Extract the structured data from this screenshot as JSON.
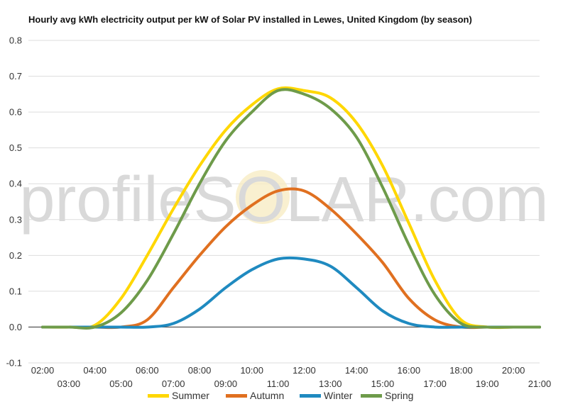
{
  "chart_data": {
    "type": "line",
    "title": "Hourly avg kWh electricity output per kW of Solar PV installed in Lewes, United Kingdom (by season)",
    "xlabel": "",
    "ylabel": "",
    "x": [
      "02:00",
      "03:00",
      "04:00",
      "05:00",
      "06:00",
      "07:00",
      "08:00",
      "09:00",
      "10:00",
      "11:00",
      "12:00",
      "13:00",
      "14:00",
      "15:00",
      "16:00",
      "17:00",
      "18:00",
      "19:00",
      "20:00",
      "21:00"
    ],
    "ylim": [
      -0.1,
      0.8
    ],
    "yticks": [
      "-0.1",
      "0.0",
      "0.1",
      "0.2",
      "0.3",
      "0.4",
      "0.5",
      "0.6",
      "0.7",
      "0.8"
    ],
    "grid": true,
    "legend_position": "bottom",
    "series": [
      {
        "name": "Summer",
        "color": "#FFD700",
        "values": [
          0.0,
          0.0,
          0.005,
          0.08,
          0.2,
          0.33,
          0.45,
          0.55,
          0.62,
          0.665,
          0.66,
          0.64,
          0.57,
          0.45,
          0.29,
          0.13,
          0.02,
          0.0,
          0.0,
          0.0
        ]
      },
      {
        "name": "Autumn",
        "color": "#E07020",
        "values": [
          0.0,
          0.0,
          0.0,
          0.0,
          0.02,
          0.11,
          0.2,
          0.28,
          0.34,
          0.38,
          0.38,
          0.33,
          0.26,
          0.18,
          0.08,
          0.02,
          0.0,
          0.0,
          0.0,
          0.0
        ]
      },
      {
        "name": "Winter",
        "color": "#1F8AC0",
        "values": [
          0.0,
          0.0,
          0.0,
          0.0,
          0.0,
          0.01,
          0.05,
          0.11,
          0.16,
          0.19,
          0.19,
          0.17,
          0.11,
          0.045,
          0.01,
          0.0,
          0.0,
          0.0,
          0.0,
          0.0
        ]
      },
      {
        "name": "Spring",
        "color": "#6E9B4A",
        "values": [
          0.0,
          0.0,
          0.0,
          0.04,
          0.13,
          0.26,
          0.4,
          0.52,
          0.6,
          0.66,
          0.65,
          0.61,
          0.53,
          0.39,
          0.23,
          0.09,
          0.01,
          0.0,
          0.0,
          0.0
        ]
      }
    ],
    "watermark": "profileSOLAR.com"
  }
}
